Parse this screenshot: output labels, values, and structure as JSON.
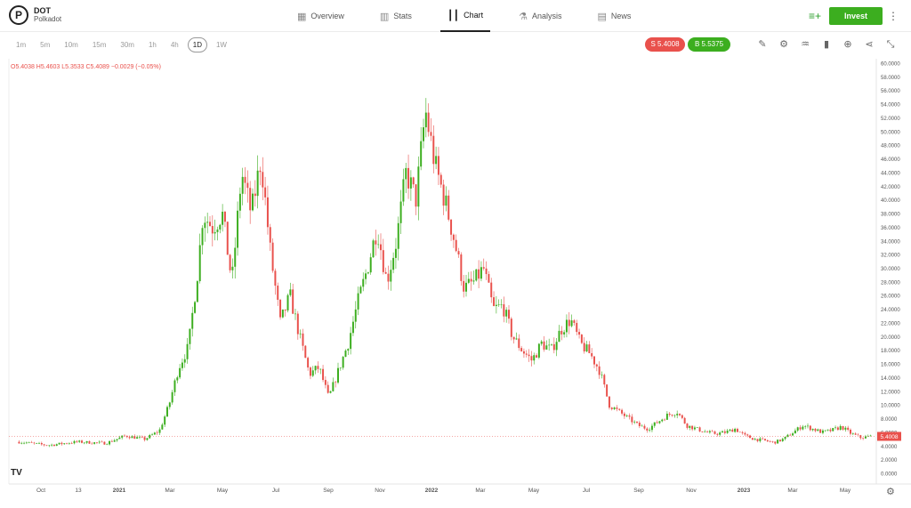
{
  "asset": {
    "symbol": "DOT",
    "name": "Polkadot",
    "logo_letter": "P"
  },
  "nav": [
    {
      "label": "Overview",
      "icon": "grid-icon",
      "glyph": "▦",
      "active": false
    },
    {
      "label": "Stats",
      "icon": "stats-icon",
      "glyph": "▥",
      "active": false
    },
    {
      "label": "Chart",
      "icon": "candles-icon",
      "glyph": "┃┃",
      "active": true
    },
    {
      "label": "Analysis",
      "icon": "flask-icon",
      "glyph": "⚗",
      "active": false
    },
    {
      "label": "News",
      "icon": "news-icon",
      "glyph": "▤",
      "active": false
    }
  ],
  "actions": {
    "invest_label": "Invest",
    "watchlist_icon": "add-to-watchlist-icon",
    "more_icon": "more-vertical-icon"
  },
  "timeframes": [
    "1m",
    "5m",
    "10m",
    "15m",
    "30m",
    "1h",
    "4h",
    "1D",
    "1W"
  ],
  "active_timeframe": "1D",
  "prices": {
    "sell": "S 5.4008",
    "buy": "B 5.5375",
    "sell_color": "#e9514c",
    "buy_color": "#3cae1f"
  },
  "tools": [
    {
      "name": "draw-icon",
      "glyph": "✎"
    },
    {
      "name": "settings-icon",
      "glyph": "⚙"
    },
    {
      "name": "indicators-icon",
      "glyph": "♒"
    },
    {
      "name": "chart-type-icon",
      "glyph": "▮"
    },
    {
      "name": "add-icon",
      "glyph": "⊕"
    },
    {
      "name": "share-icon",
      "glyph": "⋖"
    },
    {
      "name": "collapse-icon",
      "glyph": "⤡"
    }
  ],
  "ohlc_text": "O5.4038  H5.4603  L5.3533  C5.4089  −0.0029 (−0.05%)",
  "chart_data": {
    "type": "candlestick",
    "x_tick_labels": [
      "Oct",
      "13",
      "2021",
      "Mar",
      "May",
      "Jul",
      "Sep",
      "Nov",
      "2022",
      "Mar",
      "May",
      "Jul",
      "Sep",
      "Nov",
      "2023",
      "Mar",
      "May"
    ],
    "y_tick_labels": [
      "0.0000",
      "2.0000",
      "4.0000",
      "6.0000",
      "8.0000",
      "10.0000",
      "12.0000",
      "14.0000",
      "16.0000",
      "18.0000",
      "20.0000",
      "22.0000",
      "24.0000",
      "26.0000",
      "28.0000",
      "30.0000",
      "32.0000",
      "34.0000",
      "36.0000",
      "38.0000",
      "40.0000",
      "42.0000",
      "44.0000",
      "46.0000",
      "48.0000",
      "50.0000",
      "52.0000",
      "54.0000",
      "56.0000",
      "58.0000",
      "60.0000"
    ],
    "ylim": [
      0,
      60
    ],
    "last_price_label": "5.4008",
    "up_color": "#3cae1f",
    "down_color": "#e9514c",
    "price_path": [
      [
        0,
        4.6
      ],
      [
        3,
        4.1
      ],
      [
        6,
        4.6
      ],
      [
        9,
        4.4
      ],
      [
        11,
        5.5
      ],
      [
        13,
        5.0
      ],
      [
        14.5,
        6.2
      ],
      [
        15.5,
        10.0
      ],
      [
        16.5,
        15.5
      ],
      [
        17.5,
        18.5
      ],
      [
        18.5,
        30.0
      ],
      [
        19,
        38.0
      ],
      [
        20,
        36.0
      ],
      [
        21,
        38.0
      ],
      [
        22,
        28.0
      ],
      [
        23,
        44.0
      ],
      [
        24,
        38.0
      ],
      [
        25,
        46.0
      ],
      [
        26,
        32.0
      ],
      [
        27,
        22.0
      ],
      [
        28,
        26.0
      ],
      [
        29,
        20.0
      ],
      [
        30,
        14.5
      ],
      [
        31,
        15.5
      ],
      [
        32,
        11.0
      ],
      [
        33,
        15.0
      ],
      [
        34,
        19.0
      ],
      [
        35,
        25.0
      ],
      [
        36,
        30.0
      ],
      [
        37,
        36.0
      ],
      [
        38,
        28.0
      ],
      [
        39,
        34.0
      ],
      [
        40,
        44.0
      ],
      [
        41,
        40.0
      ],
      [
        42,
        53.0
      ],
      [
        43,
        45.0
      ],
      [
        44,
        40.0
      ],
      [
        45,
        34.0
      ],
      [
        46,
        27.0
      ],
      [
        47,
        28.0
      ],
      [
        48,
        30.0
      ],
      [
        49,
        24.0
      ],
      [
        50,
        24.5
      ],
      [
        51,
        20.0
      ],
      [
        52,
        18.0
      ],
      [
        53,
        16.5
      ],
      [
        54,
        19.0
      ],
      [
        55,
        18.0
      ],
      [
        56,
        21.0
      ],
      [
        57,
        22.5
      ],
      [
        58,
        19.0
      ],
      [
        59,
        17.5
      ],
      [
        60,
        15.0
      ],
      [
        61,
        10.0
      ],
      [
        62,
        9.0
      ],
      [
        63,
        8.0
      ],
      [
        64,
        7.0
      ],
      [
        65,
        6.5
      ],
      [
        66,
        7.5
      ],
      [
        67,
        8.5
      ],
      [
        68,
        9.0
      ],
      [
        69,
        7.0
      ],
      [
        70,
        6.5
      ],
      [
        71,
        6.0
      ],
      [
        72,
        5.8
      ],
      [
        73,
        6.0
      ],
      [
        74,
        6.5
      ],
      [
        75,
        5.5
      ],
      [
        76,
        5.0
      ],
      [
        77,
        4.8
      ],
      [
        78,
        4.5
      ],
      [
        79,
        5.0
      ],
      [
        80,
        6.0
      ],
      [
        81,
        7.0
      ],
      [
        82,
        6.5
      ],
      [
        83,
        6.0
      ],
      [
        84,
        6.3
      ],
      [
        85,
        6.8
      ],
      [
        86,
        5.8
      ],
      [
        87,
        5.2
      ],
      [
        88,
        5.4
      ]
    ]
  }
}
